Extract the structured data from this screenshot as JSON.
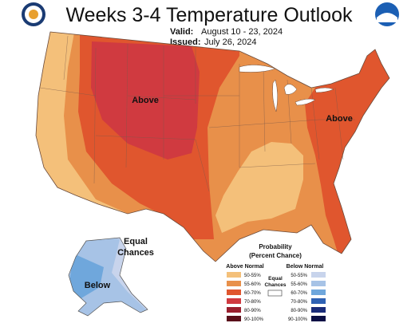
{
  "header": {
    "title": "Weeks 3-4 Temperature Outlook",
    "valid_label": "Valid:",
    "valid_value": "August 10 - 23, 2024",
    "issued_label": "Issued:",
    "issued_value": "July 26, 2024"
  },
  "map_labels": {
    "above_west": "Above",
    "above_east": "Above",
    "equal_line1": "Equal",
    "equal_line2": "Chances",
    "below": "Below"
  },
  "legend": {
    "title_line1": "Probability",
    "title_line2": "(Percent Chance)",
    "above_header": "Above Normal",
    "below_header": "Below Normal",
    "equal_line1": "Equal",
    "equal_line2": "Chances",
    "above_bins": [
      {
        "label": "50-55%",
        "color": "#f4c07a"
      },
      {
        "label": "55-60%",
        "color": "#e8904a"
      },
      {
        "label": "60-70%",
        "color": "#e0562e"
      },
      {
        "label": "70-80%",
        "color": "#d03a40"
      },
      {
        "label": "80-90%",
        "color": "#9a1f2e"
      },
      {
        "label": "90-100%",
        "color": "#5a0f1a"
      }
    ],
    "below_bins": [
      {
        "label": "50-55%",
        "color": "#c8d4ec"
      },
      {
        "label": "55-60%",
        "color": "#a7c3e6"
      },
      {
        "label": "60-70%",
        "color": "#6fa7dc"
      },
      {
        "label": "70-80%",
        "color": "#2f62b4"
      },
      {
        "label": "80-90%",
        "color": "#1a2c7a"
      },
      {
        "label": "90-100%",
        "color": "#0b0f45"
      }
    ]
  },
  "logos": {
    "left": "noaa-commerce-seal",
    "right": "noaa-logo"
  }
}
